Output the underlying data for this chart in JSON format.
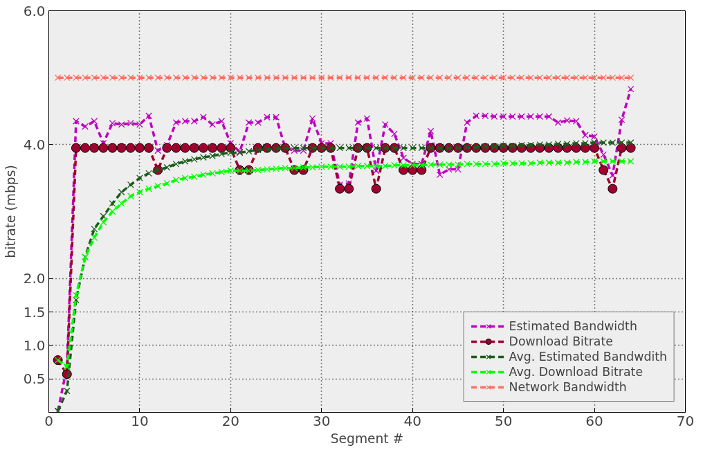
{
  "chart_data": {
    "type": "line",
    "xlabel": "Segment #",
    "ylabel": "bitrate (mbps)",
    "x": [
      1,
      2,
      3,
      4,
      5,
      6,
      7,
      8,
      9,
      10,
      11,
      12,
      13,
      14,
      15,
      16,
      17,
      18,
      19,
      20,
      21,
      22,
      23,
      24,
      25,
      26,
      27,
      28,
      29,
      30,
      31,
      32,
      33,
      34,
      35,
      36,
      37,
      38,
      39,
      40,
      41,
      42,
      43,
      44,
      45,
      46,
      47,
      48,
      49,
      50,
      51,
      52,
      53,
      54,
      55,
      56,
      57,
      58,
      59,
      60,
      61,
      62,
      63,
      64
    ],
    "xlim": [
      0,
      70
    ],
    "xticks": [
      0,
      10,
      20,
      30,
      40,
      50,
      60,
      70
    ],
    "ylim": [
      0,
      6
    ],
    "yticks": [
      0.5,
      {
        "value": 1,
        "label": "1.0"
      },
      1.5,
      {
        "value": 2,
        "label": "2.0"
      },
      {
        "value": 4,
        "label": "4.0"
      },
      {
        "value": 6,
        "label": "6.0"
      }
    ],
    "grid": true,
    "legend": "bottom right",
    "line_style": "dashed",
    "series": [
      {
        "name": "Estimated Bandwidth",
        "color": "#bf00bf",
        "marker": "cross",
        "values": [
          0.02,
          0.68,
          4.35,
          4.27,
          4.35,
          4.02,
          4.32,
          4.3,
          4.32,
          4.3,
          4.43,
          3.91,
          3.99,
          4.33,
          4.35,
          4.35,
          4.41,
          4.3,
          4.35,
          4.02,
          3.89,
          4.33,
          4.33,
          4.41,
          4.41,
          3.95,
          3.91,
          3.91,
          4.39,
          4.02,
          4.02,
          3.4,
          3.42,
          4.33,
          4.39,
          3.61,
          4.3,
          4.16,
          3.8,
          3.71,
          3.71,
          4.2,
          3.55,
          3.63,
          3.63,
          4.33,
          4.43,
          4.43,
          4.42,
          4.42,
          4.42,
          4.42,
          4.42,
          4.42,
          4.42,
          4.33,
          4.36,
          4.35,
          4.14,
          4.12,
          3.85,
          3.54,
          4.37,
          4.83
        ]
      },
      {
        "name": "Download Bitrate",
        "color": "#a00030",
        "marker": "circle",
        "values": [
          0.78,
          0.57,
          3.95,
          3.95,
          3.95,
          3.95,
          3.95,
          3.95,
          3.95,
          3.95,
          3.95,
          3.62,
          3.95,
          3.95,
          3.95,
          3.95,
          3.95,
          3.95,
          3.95,
          3.95,
          3.62,
          3.62,
          3.95,
          3.95,
          3.95,
          3.95,
          3.62,
          3.62,
          3.95,
          3.95,
          3.95,
          3.34,
          3.34,
          3.95,
          3.95,
          3.34,
          3.95,
          3.95,
          3.62,
          3.62,
          3.62,
          3.95,
          3.95,
          3.95,
          3.95,
          3.95,
          3.95,
          3.95,
          3.95,
          3.95,
          3.95,
          3.95,
          3.95,
          3.95,
          3.95,
          3.95,
          3.95,
          3.95,
          3.95,
          3.95,
          3.62,
          3.34,
          3.95,
          3.95
        ]
      },
      {
        "name": "Avg. Estimated Bandwdith",
        "color": "#1a5c1a",
        "marker": "cross",
        "values": [
          0.02,
          0.32,
          1.68,
          2.32,
          2.74,
          2.93,
          3.12,
          3.29,
          3.4,
          3.5,
          3.57,
          3.62,
          3.66,
          3.71,
          3.75,
          3.78,
          3.81,
          3.83,
          3.86,
          3.88,
          3.88,
          3.9,
          3.92,
          3.93,
          3.94,
          3.95,
          3.95,
          3.95,
          3.95,
          3.95,
          3.95,
          3.95,
          3.95,
          3.95,
          3.95,
          3.95,
          3.95,
          3.95,
          3.95,
          3.95,
          3.95,
          3.95,
          3.95,
          3.95,
          3.95,
          3.96,
          3.96,
          3.97,
          3.97,
          3.98,
          3.98,
          3.99,
          3.99,
          4.0,
          4.0,
          4.01,
          4.01,
          4.02,
          4.02,
          4.03,
          4.03,
          4.03,
          4.03,
          4.03
        ]
      },
      {
        "name": "Avg. Download Bitrate",
        "color": "#00ff00",
        "marker": "cross",
        "values": [
          0.78,
          0.68,
          1.75,
          2.32,
          2.61,
          2.84,
          3.0,
          3.12,
          3.23,
          3.29,
          3.34,
          3.38,
          3.42,
          3.47,
          3.5,
          3.52,
          3.55,
          3.57,
          3.59,
          3.61,
          3.61,
          3.61,
          3.62,
          3.63,
          3.64,
          3.65,
          3.65,
          3.66,
          3.66,
          3.67,
          3.67,
          3.67,
          3.67,
          3.68,
          3.68,
          3.68,
          3.68,
          3.69,
          3.69,
          3.69,
          3.69,
          3.7,
          3.7,
          3.7,
          3.7,
          3.71,
          3.71,
          3.71,
          3.71,
          3.72,
          3.72,
          3.72,
          3.72,
          3.73,
          3.73,
          3.73,
          3.73,
          3.74,
          3.74,
          3.75,
          3.75,
          3.75,
          3.75,
          3.75
        ]
      },
      {
        "name": "Network Bandwidth",
        "color": "#ff6f61",
        "marker": "cross",
        "values": [
          5,
          5,
          5,
          5,
          5,
          5,
          5,
          5,
          5,
          5,
          5,
          5,
          5,
          5,
          5,
          5,
          5,
          5,
          5,
          5,
          5,
          5,
          5,
          5,
          5,
          5,
          5,
          5,
          5,
          5,
          5,
          5,
          5,
          5,
          5,
          5,
          5,
          5,
          5,
          5,
          5,
          5,
          5,
          5,
          5,
          5,
          5,
          5,
          5,
          5,
          5,
          5,
          5,
          5,
          5,
          5,
          5,
          5,
          5,
          5,
          5,
          5,
          5,
          5
        ]
      }
    ]
  }
}
